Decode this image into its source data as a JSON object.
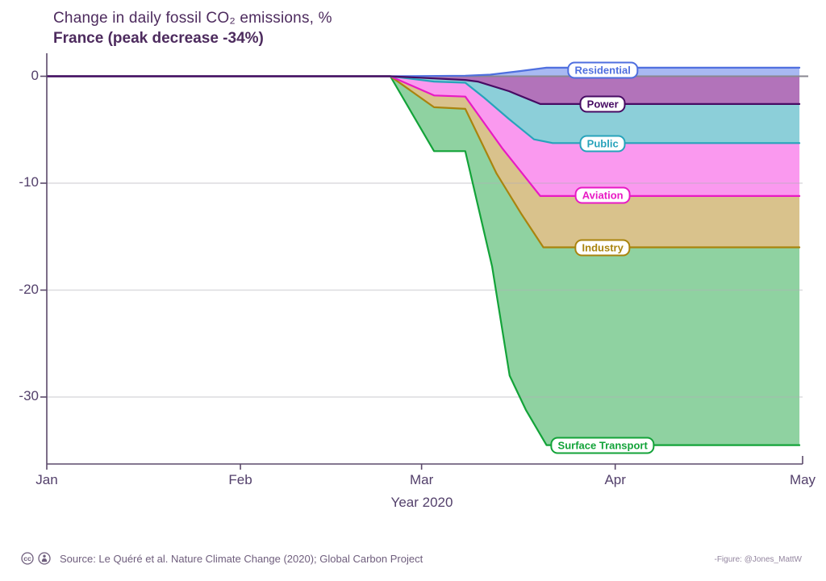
{
  "title": {
    "line1": "Change in daily fossil CO₂ emissions, %",
    "line2": "France (peak decrease -34%)"
  },
  "footer": {
    "source": "Source: Le Quéré et al. Nature Climate Change (2020); Global Carbon Project",
    "credit": "-Figure: @Jones_MattW",
    "license_icons": [
      "cc-icon",
      "by-attribution-icon"
    ]
  },
  "chart_data": {
    "type": "area",
    "stacked": true,
    "title": "Change in daily fossil CO₂ emissions, %",
    "subtitle": "France (peak decrease -34%)",
    "peak_total_decrease_pct": -34,
    "x_axis": {
      "title": "Year 2020",
      "unit": "day of year 2020 (0 = Jan 1)",
      "ticks": [
        {
          "label": "Jan",
          "day": 0
        },
        {
          "label": "Feb",
          "day": 31
        },
        {
          "label": "Mar",
          "day": 60
        },
        {
          "label": "Apr",
          "day": 91
        },
        {
          "label": "May",
          "day": 121
        }
      ],
      "range_days": [
        0,
        121
      ],
      "data_end_day": 120.5
    },
    "y_axis": {
      "label": "Change in daily fossil CO₂ emissions, %",
      "ticks": [
        0,
        -10,
        -20,
        -30
      ],
      "tick_labels": [
        "0",
        "-10",
        "-20",
        "-30"
      ],
      "gridlines": [
        -10,
        -20,
        -30
      ],
      "ylim": [
        -36.3,
        2.2
      ]
    },
    "zero_line_color": "#8a8791",
    "grid_color": "rgba(178,175,185,0.45)",
    "axis_color": "#5c4a6b",
    "series_note": "boundary = cumulative stacked value in %, points are [day, value]; final_change_pct is the sector's own change at the end of the record",
    "series": [
      {
        "id": "residential",
        "label": "Residential",
        "role": "positive",
        "final_change_pct": 0.8,
        "fill": "#a8b9f2",
        "stroke": "#4f6fdf",
        "label_pos": {
          "day": 89,
          "value": 0.55
        },
        "boundary": [
          [
            0,
            0
          ],
          [
            55,
            0
          ],
          [
            67,
            0.05
          ],
          [
            71,
            0.15
          ],
          [
            76,
            0.5
          ],
          [
            80,
            0.8
          ],
          [
            120.5,
            0.8
          ]
        ]
      },
      {
        "id": "power",
        "label": "Power",
        "role": "negative-stack",
        "final_change_pct": -2.6,
        "fill": "#b273ba",
        "stroke": "#470b63",
        "label_pos": {
          "day": 89,
          "value": -2.6
        },
        "boundary": [
          [
            0,
            0
          ],
          [
            55,
            0
          ],
          [
            62,
            -0.2
          ],
          [
            67,
            -0.35
          ],
          [
            69,
            -0.5
          ],
          [
            74,
            -1.4
          ],
          [
            79,
            -2.6
          ],
          [
            120.5,
            -2.6
          ]
        ]
      },
      {
        "id": "public",
        "label": "Public",
        "role": "negative-stack",
        "final_change_pct": -3.65,
        "fill": "#8ccfd9",
        "stroke": "#27a3bb",
        "label_pos": {
          "day": 89,
          "value": -6.3
        },
        "boundary": [
          [
            0,
            0
          ],
          [
            55,
            0
          ],
          [
            62,
            -0.5
          ],
          [
            67,
            -0.6
          ],
          [
            70,
            -2.0
          ],
          [
            74,
            -4.0
          ],
          [
            78,
            -5.9
          ],
          [
            81,
            -6.25
          ],
          [
            120.5,
            -6.25
          ]
        ]
      },
      {
        "id": "aviation",
        "label": "Aviation",
        "role": "negative-stack",
        "final_change_pct": -4.9,
        "fill": "#fa99ef",
        "stroke": "#e81ac4",
        "label_pos": {
          "day": 89,
          "value": -11.15
        },
        "boundary": [
          [
            0,
            0
          ],
          [
            55,
            0
          ],
          [
            62,
            -1.8
          ],
          [
            67,
            -1.9
          ],
          [
            73,
            -6.8
          ],
          [
            79,
            -11.2
          ],
          [
            120.5,
            -11.2
          ]
        ]
      },
      {
        "id": "industry",
        "label": "Industry",
        "role": "negative-stack",
        "final_change_pct": -4.8,
        "fill": "#d9c28c",
        "stroke": "#a9840e",
        "label_pos": {
          "day": 89,
          "value": -16.0
        },
        "boundary": [
          [
            0,
            0
          ],
          [
            55,
            0
          ],
          [
            62,
            -2.9
          ],
          [
            67,
            -3.05
          ],
          [
            72,
            -9.1
          ],
          [
            76,
            -12.9
          ],
          [
            79.5,
            -16.0
          ],
          [
            120.5,
            -16.0
          ]
        ]
      },
      {
        "id": "surface_transport",
        "label": "Surface Transport",
        "role": "negative-stack",
        "final_change_pct": -18.5,
        "fill": "#8fd2a1",
        "stroke": "#13a339",
        "label_pos": {
          "day": 89,
          "value": -34.5
        },
        "boundary": [
          [
            0,
            0
          ],
          [
            55,
            0
          ],
          [
            62,
            -7.0
          ],
          [
            67,
            -7.0
          ],
          [
            71.3,
            -17.8
          ],
          [
            74.1,
            -28.0
          ],
          [
            76.7,
            -31.2
          ],
          [
            80,
            -34.5
          ],
          [
            120.5,
            -34.5
          ]
        ]
      }
    ]
  }
}
